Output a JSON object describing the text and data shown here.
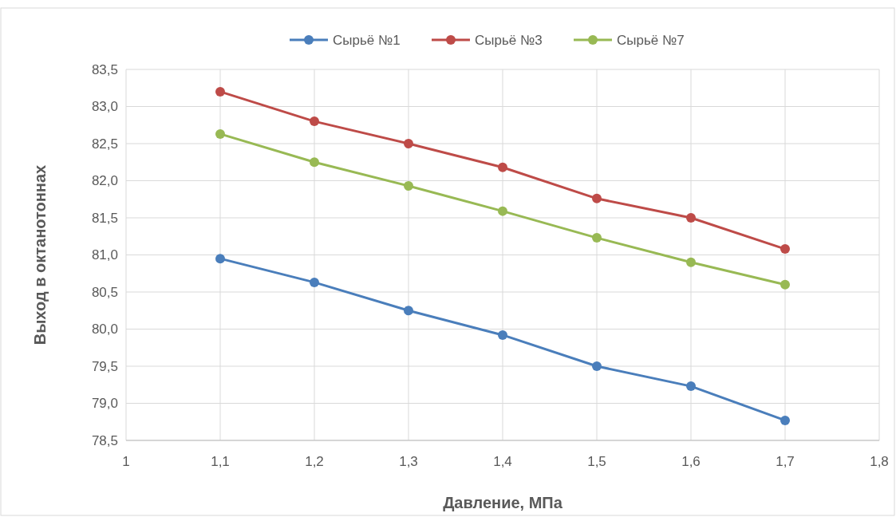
{
  "chart_data": {
    "type": "line",
    "xlabel": "Давление, МПа",
    "ylabel": "Выход в октанотоннах",
    "x": [
      1.1,
      1.2,
      1.3,
      1.4,
      1.5,
      1.6,
      1.7
    ],
    "series": [
      {
        "name": "Сырьё №1",
        "color": "#4a7ebb",
        "values": [
          80.95,
          80.63,
          80.25,
          79.92,
          79.5,
          79.23,
          78.77
        ]
      },
      {
        "name": "Сырьё №3",
        "color": "#be4b48",
        "values": [
          83.2,
          82.8,
          82.5,
          82.18,
          81.76,
          81.5,
          81.08
        ]
      },
      {
        "name": "Сырьё №7",
        "color": "#98b954",
        "values": [
          82.63,
          82.25,
          81.93,
          81.59,
          81.23,
          80.9,
          80.6
        ]
      }
    ],
    "xlim": [
      1,
      1.8
    ],
    "xticks": [
      1,
      {
        "value": 1.1,
        "label": "1,1"
      },
      {
        "value": 1.2,
        "label": "1,2"
      },
      {
        "value": 1.3,
        "label": "1,3"
      },
      {
        "value": 1.4,
        "label": "1,4"
      },
      {
        "value": 1.5,
        "label": "1,5"
      },
      {
        "value": 1.6,
        "label": "1,6"
      },
      {
        "value": 1.7,
        "label": "1,7"
      },
      {
        "value": 1.8,
        "label": "1,8"
      }
    ],
    "ylim": [
      78.5,
      83.5
    ],
    "yticks": [
      {
        "value": 78.5,
        "label": "78,5"
      },
      {
        "value": 79,
        "label": "79,0"
      },
      {
        "value": 79.5,
        "label": "79,5"
      },
      {
        "value": 80,
        "label": "80,0"
      },
      {
        "value": 80.5,
        "label": "80,5"
      },
      {
        "value": 81,
        "label": "81,0"
      },
      {
        "value": 81.5,
        "label": "81,5"
      },
      {
        "value": 82,
        "label": "82,0"
      },
      {
        "value": 82.5,
        "label": "82,5"
      },
      {
        "value": 83,
        "label": "83,0"
      },
      {
        "value": 83.5,
        "label": "83,5"
      }
    ],
    "grid": true,
    "legend": "top",
    "marker": "circle",
    "line_style": "solid"
  }
}
